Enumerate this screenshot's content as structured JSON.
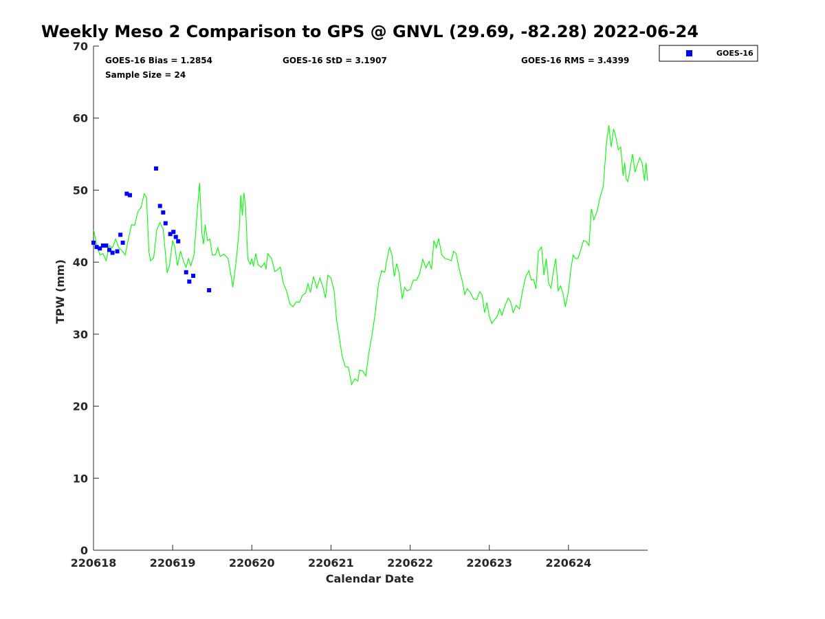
{
  "chart_data": {
    "type": "line",
    "title": "Weekly Meso 2 Comparison to GPS @ GNVL (29.69, -82.28) 2022-06-24",
    "xlabel": "Calendar Date",
    "ylabel": "TPW (mm)",
    "ylim": [
      0,
      70
    ],
    "yticks": [
      0,
      10,
      20,
      30,
      40,
      50,
      60,
      70
    ],
    "xlim": [
      0,
      7
    ],
    "xticks": [
      {
        "x": 0,
        "label": "220618"
      },
      {
        "x": 1,
        "label": "220619"
      },
      {
        "x": 2,
        "label": "220620"
      },
      {
        "x": 3,
        "label": "220621"
      },
      {
        "x": 4,
        "label": "220622"
      },
      {
        "x": 5,
        "label": "220623"
      },
      {
        "x": 6,
        "label": "220624"
      }
    ],
    "stats": {
      "bias": "GOES-16 Bias = 1.2854",
      "std": "GOES-16 StD = 3.1907",
      "rms": "GOES-16 RMS = 3.4399",
      "sample": "Sample Size = 24"
    },
    "legend": {
      "position": "top-right-outside",
      "entries": [
        "GOES-16"
      ]
    },
    "colors": {
      "gps_line": "#00ff00",
      "goes": "#0000ff"
    },
    "series": [
      {
        "kind": "line",
        "points": [
          [
            0.0,
            44.5
          ],
          [
            0.04,
            42.5
          ],
          [
            0.08,
            41.0
          ],
          [
            0.12,
            41.2
          ],
          [
            0.16,
            40.2
          ],
          [
            0.2,
            42.3
          ],
          [
            0.24,
            42.0
          ],
          [
            0.28,
            43.2
          ],
          [
            0.32,
            42.0
          ],
          [
            0.36,
            41.6
          ],
          [
            0.4,
            41.0
          ],
          [
            0.44,
            43.2
          ],
          [
            0.48,
            45.2
          ],
          [
            0.52,
            45.1
          ],
          [
            0.56,
            47.0
          ],
          [
            0.6,
            47.6
          ],
          [
            0.64,
            49.5
          ],
          [
            0.67,
            49.0
          ],
          [
            0.7,
            41.5
          ],
          [
            0.72,
            40.2
          ],
          [
            0.76,
            40.6
          ],
          [
            0.8,
            44.5
          ],
          [
            0.84,
            45.5
          ],
          [
            0.88,
            44.6
          ],
          [
            0.91,
            41.0
          ],
          [
            0.93,
            38.5
          ],
          [
            0.96,
            39.5
          ],
          [
            1.0,
            43.0
          ],
          [
            1.03,
            42.0
          ],
          [
            1.06,
            39.5
          ],
          [
            1.1,
            41.5
          ],
          [
            1.14,
            40.0
          ],
          [
            1.17,
            39.3
          ],
          [
            1.2,
            40.5
          ],
          [
            1.23,
            39.5
          ],
          [
            1.27,
            41.0
          ],
          [
            1.31,
            47.0
          ],
          [
            1.34,
            51.0
          ],
          [
            1.37,
            44.0
          ],
          [
            1.39,
            42.5
          ],
          [
            1.41,
            45.2
          ],
          [
            1.44,
            43.0
          ],
          [
            1.47,
            43.2
          ],
          [
            1.5,
            41.0
          ],
          [
            1.54,
            41.0
          ],
          [
            1.57,
            42.0
          ],
          [
            1.6,
            40.8
          ],
          [
            1.65,
            41.1
          ],
          [
            1.7,
            40.5
          ],
          [
            1.74,
            38.0
          ],
          [
            1.76,
            36.5
          ],
          [
            1.8,
            40.0
          ],
          [
            1.84,
            44.5
          ],
          [
            1.86,
            49.3
          ],
          [
            1.88,
            46.5
          ],
          [
            1.9,
            49.6
          ],
          [
            1.92,
            47.8
          ],
          [
            1.95,
            40.4
          ],
          [
            1.98,
            39.7
          ],
          [
            2.0,
            40.5
          ],
          [
            2.02,
            39.4
          ],
          [
            2.05,
            41.2
          ],
          [
            2.08,
            39.6
          ],
          [
            2.12,
            39.3
          ],
          [
            2.16,
            39.9
          ],
          [
            2.18,
            39.0
          ],
          [
            2.2,
            41.2
          ],
          [
            2.25,
            40.5
          ],
          [
            2.29,
            38.7
          ],
          [
            2.32,
            38.9
          ],
          [
            2.36,
            39.3
          ],
          [
            2.4,
            37.0
          ],
          [
            2.44,
            36.0
          ],
          [
            2.48,
            34.2
          ],
          [
            2.52,
            33.8
          ],
          [
            2.56,
            34.5
          ],
          [
            2.6,
            34.4
          ],
          [
            2.64,
            35.4
          ],
          [
            2.68,
            35.7
          ],
          [
            2.71,
            37.0
          ],
          [
            2.74,
            35.8
          ],
          [
            2.78,
            38.0
          ],
          [
            2.82,
            36.4
          ],
          [
            2.86,
            37.8
          ],
          [
            2.9,
            36.5
          ],
          [
            2.93,
            35.0
          ],
          [
            2.96,
            38.2
          ],
          [
            3.0,
            37.8
          ],
          [
            3.04,
            36.0
          ],
          [
            3.07,
            32.0
          ],
          [
            3.1,
            30.0
          ],
          [
            3.14,
            27.0
          ],
          [
            3.18,
            25.5
          ],
          [
            3.22,
            25.4
          ],
          [
            3.26,
            23.0
          ],
          [
            3.3,
            23.8
          ],
          [
            3.34,
            23.5
          ],
          [
            3.36,
            25.0
          ],
          [
            3.4,
            24.9
          ],
          [
            3.44,
            24.2
          ],
          [
            3.48,
            27.5
          ],
          [
            3.52,
            30.0
          ],
          [
            3.56,
            33.0
          ],
          [
            3.6,
            37.0
          ],
          [
            3.64,
            38.8
          ],
          [
            3.68,
            38.6
          ],
          [
            3.7,
            40.0
          ],
          [
            3.74,
            42.1
          ],
          [
            3.77,
            41.0
          ],
          [
            3.8,
            38.0
          ],
          [
            3.83,
            39.8
          ],
          [
            3.86,
            38.5
          ],
          [
            3.9,
            34.9
          ],
          [
            3.93,
            36.5
          ],
          [
            3.96,
            36.0
          ],
          [
            4.0,
            36.2
          ],
          [
            4.04,
            37.5
          ],
          [
            4.08,
            37.5
          ],
          [
            4.12,
            38.4
          ],
          [
            4.16,
            40.4
          ],
          [
            4.2,
            39.2
          ],
          [
            4.24,
            40.1
          ],
          [
            4.27,
            39.0
          ],
          [
            4.3,
            43.0
          ],
          [
            4.33,
            42.0
          ],
          [
            4.36,
            43.3
          ],
          [
            4.4,
            41.0
          ],
          [
            4.44,
            40.5
          ],
          [
            4.48,
            40.4
          ],
          [
            4.52,
            40.2
          ],
          [
            4.55,
            41.5
          ],
          [
            4.58,
            41.2
          ],
          [
            4.62,
            39.0
          ],
          [
            4.66,
            37.3
          ],
          [
            4.69,
            35.5
          ],
          [
            4.72,
            36.3
          ],
          [
            4.76,
            35.8
          ],
          [
            4.8,
            34.9
          ],
          [
            4.84,
            34.8
          ],
          [
            4.88,
            35.9
          ],
          [
            4.91,
            35.4
          ],
          [
            4.94,
            33.0
          ],
          [
            4.97,
            34.4
          ],
          [
            5.0,
            32.5
          ],
          [
            5.03,
            31.5
          ],
          [
            5.06,
            31.9
          ],
          [
            5.1,
            32.5
          ],
          [
            5.13,
            33.5
          ],
          [
            5.16,
            32.6
          ],
          [
            5.2,
            34.0
          ],
          [
            5.24,
            35.0
          ],
          [
            5.27,
            34.5
          ],
          [
            5.3,
            33.0
          ],
          [
            5.34,
            34.0
          ],
          [
            5.38,
            33.5
          ],
          [
            5.42,
            36.0
          ],
          [
            5.46,
            38.0
          ],
          [
            5.5,
            38.8
          ],
          [
            5.53,
            37.5
          ],
          [
            5.56,
            37.6
          ],
          [
            5.59,
            36.3
          ],
          [
            5.62,
            41.5
          ],
          [
            5.66,
            42.1
          ],
          [
            5.69,
            38.2
          ],
          [
            5.72,
            40.5
          ],
          [
            5.75,
            37.0
          ],
          [
            5.78,
            36.4
          ],
          [
            5.8,
            38.0
          ],
          [
            5.84,
            40.5
          ],
          [
            5.87,
            36.0
          ],
          [
            5.9,
            36.7
          ],
          [
            5.93,
            35.7
          ],
          [
            5.96,
            33.8
          ],
          [
            6.0,
            36.0
          ],
          [
            6.03,
            39.0
          ],
          [
            6.06,
            41.0
          ],
          [
            6.09,
            40.5
          ],
          [
            6.12,
            40.5
          ],
          [
            6.15,
            41.5
          ],
          [
            6.19,
            43.0
          ],
          [
            6.23,
            42.8
          ],
          [
            6.26,
            42.3
          ],
          [
            6.29,
            47.4
          ],
          [
            6.32,
            45.9
          ],
          [
            6.36,
            47.0
          ],
          [
            6.4,
            49.0
          ],
          [
            6.44,
            50.5
          ],
          [
            6.48,
            56.5
          ],
          [
            6.51,
            59.0
          ],
          [
            6.54,
            56.0
          ],
          [
            6.57,
            58.5
          ],
          [
            6.6,
            57.3
          ],
          [
            6.63,
            55.6
          ],
          [
            6.66,
            56.0
          ],
          [
            6.69,
            52.0
          ],
          [
            6.71,
            53.8
          ],
          [
            6.73,
            51.5
          ],
          [
            6.75,
            51.2
          ],
          [
            6.78,
            53.0
          ],
          [
            6.81,
            55.0
          ],
          [
            6.84,
            52.5
          ],
          [
            6.87,
            53.5
          ],
          [
            6.9,
            54.5
          ],
          [
            6.93,
            53.8
          ],
          [
            6.96,
            51.3
          ],
          [
            6.98,
            53.8
          ],
          [
            7.0,
            51.3
          ]
        ]
      },
      {
        "name": "GOES-16",
        "kind": "scatter",
        "points": [
          [
            0.0,
            42.7
          ],
          [
            0.04,
            42.1
          ],
          [
            0.08,
            41.9
          ],
          [
            0.12,
            42.3
          ],
          [
            0.16,
            42.3
          ],
          [
            0.2,
            41.7
          ],
          [
            0.24,
            41.3
          ],
          [
            0.3,
            41.5
          ],
          [
            0.34,
            43.8
          ],
          [
            0.37,
            42.7
          ],
          [
            0.42,
            49.5
          ],
          [
            0.46,
            49.3
          ],
          [
            0.79,
            53.0
          ],
          [
            0.84,
            47.8
          ],
          [
            0.88,
            46.9
          ],
          [
            0.91,
            45.4
          ],
          [
            0.97,
            43.9
          ],
          [
            1.01,
            44.2
          ],
          [
            1.04,
            43.5
          ],
          [
            1.07,
            42.9
          ],
          [
            1.17,
            38.6
          ],
          [
            1.21,
            37.3
          ],
          [
            1.26,
            38.1
          ],
          [
            1.46,
            36.1
          ]
        ]
      }
    ]
  }
}
